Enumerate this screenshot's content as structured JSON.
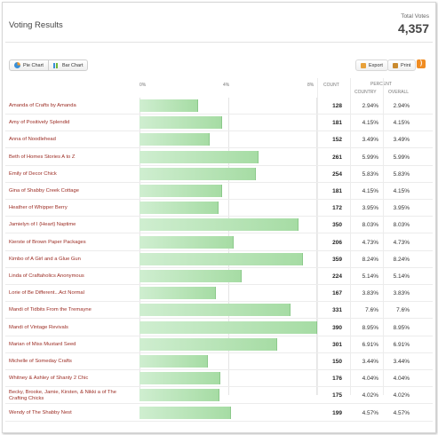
{
  "title": "Voting Results",
  "total": {
    "label": "Total Votes",
    "value": "4,357"
  },
  "toolbar": {
    "pie_label": "Pie Chart",
    "bar_label": "Bar Chart",
    "export_label": "Export",
    "print_label": "Print"
  },
  "axis": {
    "ticks": [
      "0%",
      "4%",
      "8%"
    ],
    "max_percent": 9.0
  },
  "headers": {
    "count": "COUNT",
    "percent": "PERCENT",
    "country": "COUNTRY",
    "overall": "OVERALL"
  },
  "rows": [
    {
      "name": "Amanda of Crafts by Amanda",
      "count": "128",
      "country": "2.94%",
      "overall": "2.94%"
    },
    {
      "name": "Amy of Positively Splendid",
      "count": "181",
      "country": "4.15%",
      "overall": "4.15%"
    },
    {
      "name": "Anna of Noodlehead",
      "count": "152",
      "country": "3.49%",
      "overall": "3.49%"
    },
    {
      "name": "Beth of Homes Stories A to Z",
      "count": "261",
      "country": "5.99%",
      "overall": "5.99%"
    },
    {
      "name": "Emily of Decor Chick",
      "count": "254",
      "country": "5.83%",
      "overall": "5.83%"
    },
    {
      "name": "Gina of Shabby Creek Cottage",
      "count": "181",
      "country": "4.15%",
      "overall": "4.15%"
    },
    {
      "name": "Heather of Whipper Berry",
      "count": "172",
      "country": "3.95%",
      "overall": "3.95%"
    },
    {
      "name": "Jamielyn of I {Heart} Naptime",
      "count": "350",
      "country": "8.03%",
      "overall": "8.03%"
    },
    {
      "name": "Kierste of Brown Paper Packages",
      "count": "206",
      "country": "4.73%",
      "overall": "4.73%"
    },
    {
      "name": "Kimbo of A Girl and a Glue Gun",
      "count": "359",
      "country": "8.24%",
      "overall": "8.24%"
    },
    {
      "name": "Linda of Craftaholics Anonymous",
      "count": "224",
      "country": "5.14%",
      "overall": "5.14%"
    },
    {
      "name": "Lorie of Be Different...Act Normal",
      "count": "167",
      "country": "3.83%",
      "overall": "3.83%"
    },
    {
      "name": "Mandi of Tidbits From the Tremayne",
      "count": "331",
      "country": "7.6%",
      "overall": "7.6%"
    },
    {
      "name": "Mandi of Vintage Revivals",
      "count": "390",
      "country": "8.95%",
      "overall": "8.95%"
    },
    {
      "name": "Marian of Miss Mustard Seed",
      "count": "301",
      "country": "6.91%",
      "overall": "6.91%"
    },
    {
      "name": "Michelle of Someday Crafts",
      "count": "150",
      "country": "3.44%",
      "overall": "3.44%"
    },
    {
      "name": "Whitney & Ashley of Shanty 2 Chic",
      "count": "176",
      "country": "4.04%",
      "overall": "4.04%"
    },
    {
      "name": "Becky, Brooke, Jamie, Kirsten, & Nikki a of The Crafting Chicks",
      "count": "175",
      "country": "4.02%",
      "overall": "4.02%"
    },
    {
      "name": "Wendy of The Shabby Nest",
      "count": "199",
      "country": "4.57%",
      "overall": "4.57%"
    }
  ],
  "colors": {
    "bar_fill": "#a6dca4",
    "name_text": "#9b2b22",
    "rss": "#f08c22"
  }
}
